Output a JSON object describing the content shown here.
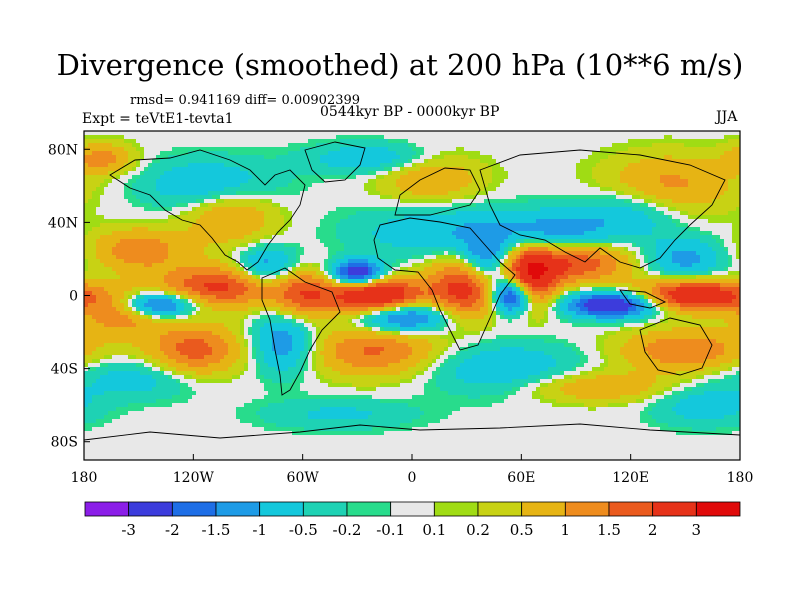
{
  "title": "Divergence (smoothed) at 200 hPa (10**6 m/s)",
  "stats": "rmsd= 0.941169 diff= 0.00902399",
  "experiment": "Expt = teVtE1-tevta1",
  "period": "0544kyr BP - 0000kyr BP",
  "season": "JJA",
  "colors": {
    "land_outline": "#000000",
    "neutral": "#e8e8e8"
  },
  "chart_data": {
    "type": "heatmap",
    "title": "Divergence (smoothed) at 200 hPa (10**6 m/s)",
    "x_axis": {
      "range": [
        -180,
        180
      ],
      "ticks": [
        -180,
        -120,
        -60,
        0,
        60,
        120,
        180
      ],
      "tick_labels": [
        "180",
        "120W",
        "60W",
        "0",
        "60E",
        "120E",
        "180"
      ]
    },
    "y_axis": {
      "range": [
        -90,
        90
      ],
      "ticks": [
        80,
        40,
        0,
        -40,
        -80
      ],
      "tick_labels": [
        "80N",
        "40N",
        "0",
        "40S",
        "80S"
      ]
    },
    "colorbar": {
      "levels": [
        -3,
        -2,
        -1.5,
        -1,
        -0.5,
        -0.2,
        -0.1,
        0.1,
        0.2,
        0.5,
        1,
        1.5,
        2,
        3
      ],
      "labels": [
        "-3",
        "-2",
        "-1.5",
        "-1",
        "-0.5",
        "-0.2",
        "-0.1",
        "0.1",
        "0.2",
        "0.5",
        "1",
        "1.5",
        "2",
        "3"
      ],
      "colors": [
        "#8b1ee8",
        "#3c3cdc",
        "#1e6ee6",
        "#1e9be6",
        "#14c8dc",
        "#1ed2b4",
        "#28dc8c",
        "#e8e8e8",
        "#a0dc14",
        "#c8d214",
        "#e6b414",
        "#ee8c1e",
        "#ea5a1e",
        "#e63219",
        "#e00a0a"
      ]
    },
    "features": [
      {
        "lon": -20,
        "lat": 0,
        "value": 3.2,
        "spread_lon": 18,
        "spread_lat": 7
      },
      {
        "lon": 30,
        "lat": 5,
        "value": 2.5,
        "spread_lon": 14,
        "spread_lat": 12
      },
      {
        "lon": 65,
        "lat": 10,
        "value": 2.8,
        "spread_lon": 10,
        "spread_lat": 12
      },
      {
        "lon": 155,
        "lat": 0,
        "value": 3.0,
        "spread_lon": 22,
        "spread_lat": 6
      },
      {
        "lon": 90,
        "lat": 18,
        "value": 2.0,
        "spread_lon": 20,
        "spread_lat": 8
      },
      {
        "lon": -105,
        "lat": 5,
        "value": 2.2,
        "spread_lon": 25,
        "spread_lat": 8
      },
      {
        "lon": -60,
        "lat": 0,
        "value": 1.6,
        "spread_lon": 12,
        "spread_lat": 10
      },
      {
        "lon": -150,
        "lat": 25,
        "value": 1.4,
        "spread_lon": 18,
        "spread_lat": 8
      },
      {
        "lon": -160,
        "lat": -10,
        "value": 1.5,
        "spread_lon": 15,
        "spread_lat": 8
      },
      {
        "lon": -120,
        "lat": -30,
        "value": 1.8,
        "spread_lon": 18,
        "spread_lat": 10
      },
      {
        "lon": -20,
        "lat": -30,
        "value": 1.6,
        "spread_lon": 25,
        "spread_lat": 10
      },
      {
        "lon": 150,
        "lat": -30,
        "value": 1.5,
        "spread_lon": 25,
        "spread_lat": 8
      },
      {
        "lon": 100,
        "lat": -50,
        "value": 1.0,
        "spread_lon": 30,
        "spread_lat": 6
      },
      {
        "lon": -100,
        "lat": 45,
        "value": 1.2,
        "spread_lon": 18,
        "spread_lat": 12
      },
      {
        "lon": 10,
        "lat": 65,
        "value": 1.0,
        "spread_lon": 20,
        "spread_lat": 10
      },
      {
        "lon": 140,
        "lat": 60,
        "value": 1.2,
        "spread_lon": 25,
        "spread_lat": 12
      },
      {
        "lon": -170,
        "lat": 75,
        "value": 1.2,
        "spread_lon": 12,
        "spread_lat": 6
      },
      {
        "lon": -30,
        "lat": 12,
        "value": -3.0,
        "spread_lon": 10,
        "spread_lat": 5
      },
      {
        "lon": 55,
        "lat": 0,
        "value": -3.2,
        "spread_lon": 8,
        "spread_lat": 7
      },
      {
        "lon": 110,
        "lat": -5,
        "value": -3.0,
        "spread_lon": 18,
        "spread_lat": 5
      },
      {
        "lon": -140,
        "lat": -5,
        "value": -2.4,
        "spread_lon": 15,
        "spread_lat": 5
      },
      {
        "lon": -5,
        "lat": -12,
        "value": -2.2,
        "spread_lon": 18,
        "spread_lat": 6
      },
      {
        "lon": 40,
        "lat": 18,
        "value": -1.8,
        "spread_lon": 10,
        "spread_lat": 10
      },
      {
        "lon": -80,
        "lat": 15,
        "value": -1.6,
        "spread_lon": 12,
        "spread_lat": 8
      },
      {
        "lon": -70,
        "lat": -25,
        "value": -1.5,
        "spread_lon": 12,
        "spread_lat": 12
      },
      {
        "lon": 20,
        "lat": 35,
        "value": -1.0,
        "spread_lon": 35,
        "spread_lat": 10
      },
      {
        "lon": 80,
        "lat": 35,
        "value": -1.2,
        "spread_lon": 20,
        "spread_lat": 8
      },
      {
        "lon": -110,
        "lat": 60,
        "value": -1.2,
        "spread_lon": 25,
        "spread_lat": 10
      },
      {
        "lon": -20,
        "lat": 75,
        "value": -1.0,
        "spread_lon": 25,
        "spread_lat": 6
      },
      {
        "lon": 120,
        "lat": 45,
        "value": -1.0,
        "spread_lon": 20,
        "spread_lat": 10
      },
      {
        "lon": 150,
        "lat": 20,
        "value": -1.2,
        "spread_lon": 15,
        "spread_lat": 8
      },
      {
        "lon": 50,
        "lat": -40,
        "value": -1.0,
        "spread_lon": 30,
        "spread_lat": 10
      },
      {
        "lon": -150,
        "lat": -45,
        "value": -0.8,
        "spread_lon": 25,
        "spread_lat": 8
      },
      {
        "lon": -40,
        "lat": -65,
        "value": -0.6,
        "spread_lon": 30,
        "spread_lat": 6
      },
      {
        "lon": 160,
        "lat": -60,
        "value": -0.8,
        "spread_lon": 20,
        "spread_lat": 8
      }
    ]
  }
}
